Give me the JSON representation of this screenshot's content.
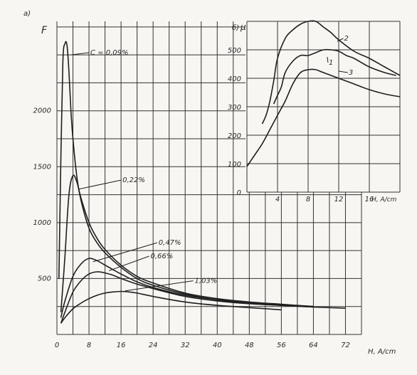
{
  "chart_data": [
    {
      "type": "line",
      "panel_label": "a)",
      "ylabel": "F",
      "xlabel": "H, A/cm",
      "xlim": [
        0,
        76
      ],
      "ylim": [
        0,
        2800
      ],
      "xticks": [
        "0",
        "8",
        "16",
        "24",
        "32",
        "40",
        "48",
        "56",
        "64",
        "72"
      ],
      "yticks": [
        "500",
        "1000",
        "1500",
        "2000"
      ],
      "series": [
        {
          "name": "C = 0,09%",
          "x": [
            0.5,
            1.0,
            1.5,
            2.0,
            2.5,
            3.0,
            3.5,
            4,
            5,
            6,
            8,
            10,
            12,
            16,
            20,
            24,
            32,
            40,
            48,
            56,
            64,
            72
          ],
          "y": [
            500,
            1600,
            2450,
            2600,
            2590,
            2350,
            2000,
            1750,
            1400,
            1200,
            950,
            820,
            730,
            600,
            500,
            440,
            360,
            310,
            280,
            260,
            245,
            235
          ]
        },
        {
          "name": "0,22%",
          "x": [
            1,
            2,
            3,
            4,
            5,
            6,
            8,
            10,
            12,
            16,
            20,
            24,
            32,
            40,
            48,
            56,
            64
          ],
          "y": [
            200,
            700,
            1250,
            1420,
            1360,
            1220,
            1000,
            860,
            760,
            620,
            520,
            460,
            370,
            320,
            290,
            270,
            250
          ]
        },
        {
          "name": "0,47%",
          "x": [
            1,
            2,
            4,
            6,
            8,
            10,
            12,
            14,
            16,
            20,
            24,
            32,
            40,
            48,
            56,
            64
          ],
          "y": [
            150,
            300,
            520,
            630,
            680,
            660,
            620,
            580,
            540,
            470,
            420,
            350,
            310,
            280,
            265,
            250
          ]
        },
        {
          "name": "0,66%",
          "x": [
            1,
            2,
            4,
            6,
            8,
            10,
            12,
            14,
            16,
            20,
            24,
            32,
            40,
            48,
            56,
            64
          ],
          "y": [
            100,
            200,
            380,
            480,
            540,
            560,
            550,
            530,
            500,
            450,
            410,
            340,
            300,
            275,
            260,
            245
          ]
        },
        {
          "name": "1,03%",
          "x": [
            1,
            2,
            4,
            6,
            8,
            10,
            12,
            14,
            16,
            18,
            20,
            24,
            32,
            40,
            48,
            56
          ],
          "y": [
            100,
            150,
            230,
            280,
            320,
            350,
            370,
            380,
            385,
            380,
            370,
            340,
            290,
            260,
            240,
            220
          ]
        }
      ]
    },
    {
      "type": "line",
      "panel_label": "б)",
      "ylabel": "μ",
      "xlabel": "H, A/cm",
      "xlim": [
        0,
        20
      ],
      "ylim": [
        0,
        600
      ],
      "xticks": [
        "4",
        "8",
        "12",
        "16"
      ],
      "yticks": [
        "0",
        "100",
        "200",
        "300",
        "400",
        "500"
      ],
      "series": [
        {
          "name": "1",
          "x": [
            3.5,
            4,
            4.5,
            5,
            6,
            7,
            8,
            9,
            10,
            11,
            12,
            13,
            14,
            16,
            18,
            19.5
          ],
          "y": [
            310,
            340,
            370,
            420,
            460,
            480,
            480,
            490,
            500,
            500,
            495,
            480,
            470,
            440,
            420,
            410
          ]
        },
        {
          "name": "2",
          "x": [
            2,
            2.5,
            3,
            3.5,
            4,
            5,
            6,
            7,
            8,
            9,
            10,
            11,
            12,
            14,
            16,
            18,
            20
          ],
          "y": [
            240,
            270,
            320,
            390,
            470,
            540,
            570,
            590,
            600,
            600,
            580,
            560,
            535,
            495,
            470,
            440,
            410
          ]
        },
        {
          "name": "3",
          "x": [
            0,
            1,
            2,
            3,
            4,
            5,
            6,
            7,
            8,
            9,
            10,
            12,
            14,
            16,
            18,
            20
          ],
          "y": [
            90,
            130,
            170,
            220,
            270,
            320,
            380,
            420,
            430,
            430,
            420,
            400,
            380,
            360,
            345,
            335
          ]
        }
      ]
    }
  ]
}
